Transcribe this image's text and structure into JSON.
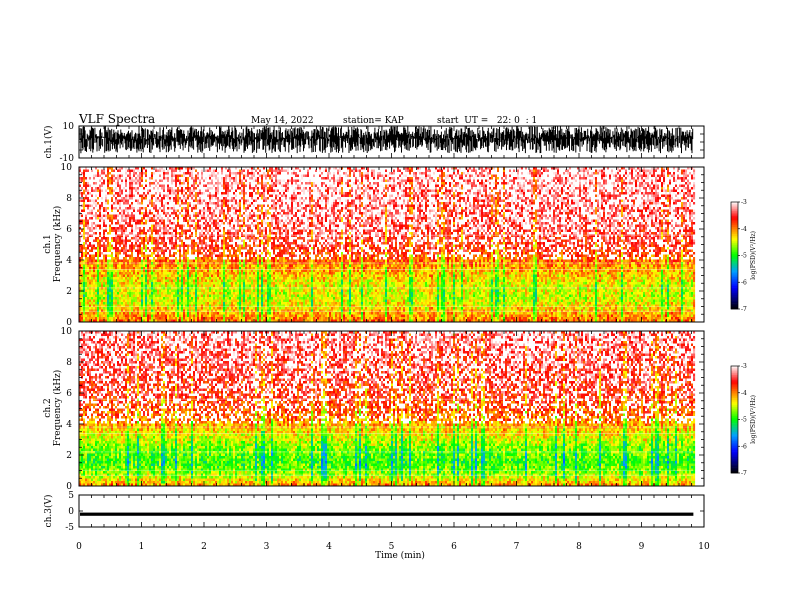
{
  "header": {
    "title": "VLF Spectra",
    "date": "May 14, 2022",
    "station": "station= KAP",
    "start": "start  UT =   22: 0  : 1"
  },
  "chart_data": [
    {
      "type": "line",
      "panel": "waveform-ch1",
      "ylabel": "ch.1(V)",
      "ylim": [
        -10,
        10
      ],
      "yticks": [
        {
          "label": "10",
          "v": 10
        },
        {
          "label": "-10",
          "v": -10
        }
      ],
      "xlim": [
        0,
        10
      ],
      "signal_extent_min": 9.83,
      "approx_range": [
        -7,
        10
      ],
      "color": "#000000"
    },
    {
      "type": "heatmap",
      "panel": "spectrogram-ch1",
      "ylabel": "ch.1\nFrequency (kHz)",
      "ylim": [
        0,
        10
      ],
      "yticks": [
        "0",
        "2",
        "4",
        "6",
        "8",
        "10"
      ],
      "xlim": [
        0,
        10
      ],
      "signal_extent_min": 9.83,
      "colorscale": {
        "label": "log(PSD)(V²/Hz)",
        "range": [
          -7,
          -3
        ],
        "ticks": [
          "-3",
          "-4",
          "-5",
          "-6",
          "-7"
        ],
        "colors": [
          "#ffffff",
          "#ff0000",
          "#ffff00",
          "#00ff00",
          "#00a0ff",
          "#0000ff",
          "#000000"
        ]
      },
      "level_profile": [
        {
          "freq": 0.0,
          "level": -3.9
        },
        {
          "freq": 0.7,
          "level": -4.2
        },
        {
          "freq": 1.5,
          "level": -4.5
        },
        {
          "freq": 2.5,
          "level": -4.4
        },
        {
          "freq": 3.5,
          "level": -4.1
        },
        {
          "freq": 4.5,
          "level": -3.7
        },
        {
          "freq": 6.0,
          "level": -3.4
        },
        {
          "freq": 10.0,
          "level": -3.2
        }
      ]
    },
    {
      "type": "heatmap",
      "panel": "spectrogram-ch2",
      "ylabel": "ch.2\nFrequency (kHz)",
      "ylim": [
        0,
        10
      ],
      "yticks": [
        "0",
        "2",
        "4",
        "6",
        "8",
        "10"
      ],
      "xlim": [
        0,
        10
      ],
      "signal_extent_min": 9.83,
      "colorscale": {
        "label": "log(PSD)(V²/Hz)",
        "range": [
          -7,
          -3
        ],
        "ticks": [
          "-3",
          "-4",
          "-5",
          "-6",
          "-7"
        ],
        "colors": [
          "#ffffff",
          "#ff0000",
          "#ffff00",
          "#00ff00",
          "#00a0ff",
          "#0000ff",
          "#000000"
        ]
      },
      "level_profile": [
        {
          "freq": 0.0,
          "level": -4.0
        },
        {
          "freq": 0.7,
          "level": -4.6
        },
        {
          "freq": 1.5,
          "level": -4.9
        },
        {
          "freq": 2.5,
          "level": -4.7
        },
        {
          "freq": 3.5,
          "level": -4.3
        },
        {
          "freq": 4.5,
          "level": -3.9
        },
        {
          "freq": 6.0,
          "level": -3.6
        },
        {
          "freq": 10.0,
          "level": -3.3
        }
      ]
    },
    {
      "type": "line",
      "panel": "waveform-ch3",
      "ylabel": "ch.3(V)",
      "ylim": [
        -5,
        5
      ],
      "yticks": [
        {
          "label": "5",
          "v": 5
        },
        {
          "label": "0",
          "v": 0
        },
        {
          "label": "-5",
          "v": -5
        }
      ],
      "xlim": [
        0,
        10
      ],
      "signal_extent_min": 9.83,
      "approx_range": [
        -1.5,
        -0.5
      ],
      "color": "#000000"
    }
  ],
  "xaxis": {
    "label": "Time (min)",
    "range": [
      0,
      10
    ],
    "ticks": [
      "0",
      "1",
      "2",
      "3",
      "4",
      "5",
      "6",
      "7",
      "8",
      "9",
      "10"
    ]
  }
}
